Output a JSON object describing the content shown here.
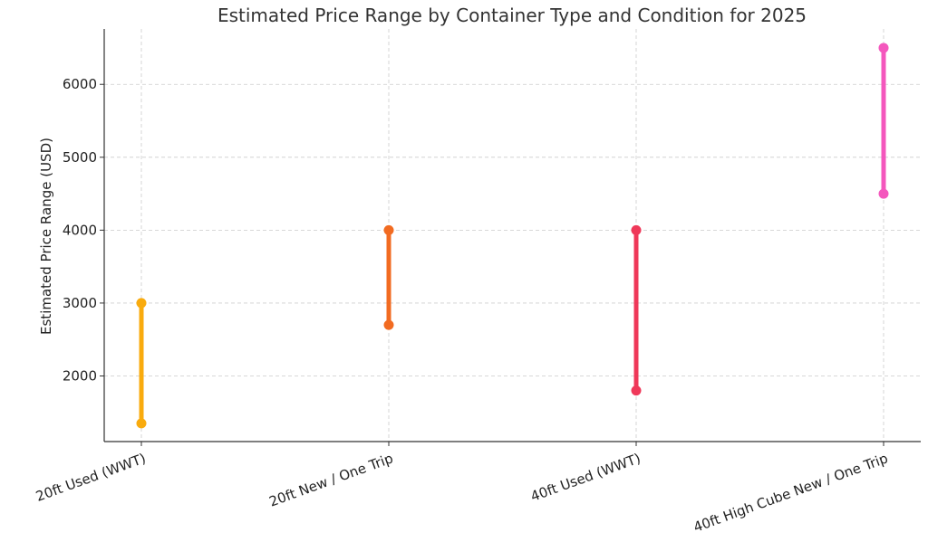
{
  "chart_data": {
    "type": "range",
    "title": "Estimated Price Range by Container Type and Condition for 2025",
    "xlabel": "",
    "ylabel": "Estimated Price Range (USD)",
    "categories": [
      "20ft Used (WWT)",
      "20ft New / One Trip",
      "40ft Used (WWT)",
      "40ft High Cube New / One Trip"
    ],
    "low": [
      1350,
      2700,
      1800,
      4500
    ],
    "high": [
      3000,
      4000,
      4000,
      6500
    ],
    "colors": [
      "#f9ab0e",
      "#f26b21",
      "#ef3859",
      "#f457bd"
    ],
    "ylim": [
      1100,
      6760
    ],
    "yticks": [
      2000,
      3000,
      4000,
      5000,
      6000
    ],
    "grid": true
  }
}
